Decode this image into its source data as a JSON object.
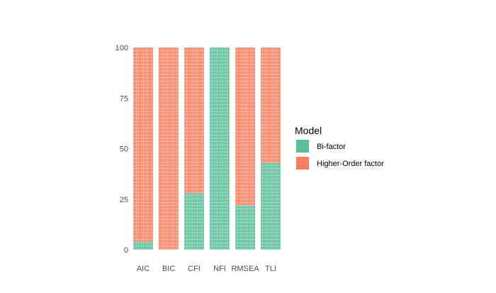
{
  "chart_data": {
    "type": "bar",
    "subtype": "stacked-100-waffle",
    "title": "",
    "xlabel": "",
    "ylabel": "",
    "ylim": [
      0,
      100
    ],
    "yticks": [
      0,
      25,
      50,
      75,
      100
    ],
    "grid": false,
    "legend_position": "right",
    "legend_title": "Model",
    "categories": [
      "AIC",
      "BIC",
      "CFI",
      "NFI",
      "RMSEA",
      "TLI"
    ],
    "series": [
      {
        "name": "Bi-factor",
        "color": "#5bbf98",
        "values": [
          4,
          0,
          28,
          100,
          22,
          43
        ]
      },
      {
        "name": "Higher-Order factor",
        "color": "#fb8161",
        "values": [
          96,
          100,
          72,
          0,
          78,
          57
        ]
      }
    ]
  }
}
